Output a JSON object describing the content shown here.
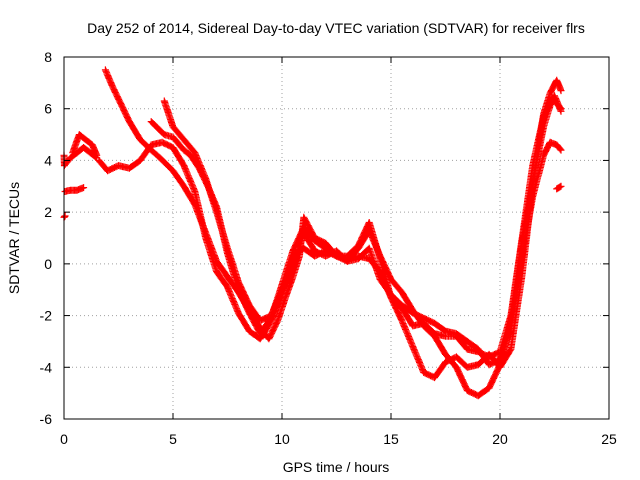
{
  "chart_data": {
    "type": "scatter",
    "title": "Day 252 of 2014, Sidereal Day-to-day VTEC variation (SDTVAR) for receiver flrs",
    "xlabel": "GPS time / hours",
    "ylabel": "SDTVAR / TECUs",
    "xlim": [
      0,
      25
    ],
    "ylim": [
      -6,
      8
    ],
    "x_ticks": [
      "0",
      "5",
      "10",
      "15",
      "20",
      "25"
    ],
    "y_ticks": [
      "-6",
      "-4",
      "-2",
      "0",
      "2",
      "4",
      "6",
      "8"
    ],
    "grid": true,
    "marker": "+",
    "color": "#ff0000",
    "series": [
      {
        "name": "s1",
        "x": [
          0.0,
          0.02,
          0.1,
          0.3,
          0.6,
          0.9,
          1.2,
          1.5
        ],
        "y": [
          4.2,
          3.8,
          3.9,
          4.1,
          4.3,
          4.5,
          4.3,
          4.1
        ]
      },
      {
        "name": "s2",
        "x": [
          0.05,
          0.3,
          0.6,
          0.9
        ],
        "y": [
          2.8,
          2.85,
          2.85,
          2.95
        ]
      },
      {
        "name": "s3",
        "x": [
          0.0,
          0.05
        ],
        "y": [
          1.8,
          1.85
        ]
      },
      {
        "name": "s4",
        "x": [
          0.4,
          0.7,
          1.0,
          1.3,
          1.5
        ],
        "y": [
          4.3,
          5.0,
          4.8,
          4.6,
          4.2
        ]
      },
      {
        "name": "s5",
        "x": [
          1.6,
          2.0,
          2.5,
          3.0,
          3.5,
          4.0,
          4.5,
          5.0,
          5.5,
          6.0,
          6.5,
          7.0,
          7.5,
          8.0,
          8.5,
          9.0,
          9.3,
          9.6,
          10.0,
          10.5,
          11.0,
          11.5,
          12.0,
          12.5,
          13.0,
          13.5,
          14.0,
          14.5,
          15.0,
          15.5,
          16.0,
          16.5,
          17.0,
          17.5,
          18.0,
          18.5,
          19.0,
          19.5,
          20.0,
          20.5,
          21.0,
          21.5,
          22.0,
          22.3,
          22.6,
          22.8
        ],
        "y": [
          4.0,
          3.6,
          3.8,
          3.7,
          4.0,
          4.6,
          4.7,
          4.5,
          3.8,
          2.8,
          1.0,
          -0.3,
          -0.9,
          -1.9,
          -2.6,
          -2.9,
          -2.5,
          -2.0,
          -1.2,
          0.3,
          0.6,
          0.3,
          0.5,
          0.3,
          0.1,
          0.2,
          0.6,
          -0.6,
          -1.2,
          -1.6,
          -1.9,
          -2.1,
          -2.3,
          -2.6,
          -2.7,
          -3.0,
          -3.3,
          -3.9,
          -3.7,
          -2.5,
          0.2,
          2.6,
          4.2,
          4.7,
          4.6,
          4.4
        ]
      },
      {
        "name": "s6",
        "x": [
          1.9,
          2.2,
          2.6,
          3.0,
          3.5,
          4.0,
          4.4,
          5.0,
          5.5,
          6.0,
          6.5,
          7.0,
          7.5,
          8.0,
          8.5,
          9.0,
          9.4,
          9.8,
          10.2,
          10.5,
          10.8,
          11.0,
          11.5,
          12.0,
          12.5,
          13.0,
          13.5,
          14.0,
          14.5,
          15.0,
          15.5,
          16.0,
          16.5,
          17.0,
          17.5,
          18.0,
          18.5,
          19.0,
          19.5,
          20.0,
          20.5,
          21.0,
          21.5,
          22.0,
          22.3,
          22.6,
          22.8
        ],
        "y": [
          7.5,
          6.9,
          6.2,
          5.5,
          4.8,
          4.4,
          4.1,
          3.6,
          3.0,
          2.3,
          1.2,
          0.1,
          -0.5,
          -1.1,
          -1.8,
          -2.5,
          -2.9,
          -2.2,
          -1.2,
          -0.5,
          0.3,
          1.8,
          1.0,
          0.8,
          0.3,
          0.2,
          0.3,
          0.2,
          -0.3,
          -1.3,
          -2.2,
          -3.2,
          -4.2,
          -4.4,
          -3.8,
          -3.6,
          -4.0,
          -3.9,
          -3.5,
          -4.0,
          -3.3,
          -0.5,
          3.0,
          5.8,
          6.6,
          7.1,
          6.7
        ]
      },
      {
        "name": "s7",
        "x": [
          4.6,
          5.0,
          5.5,
          6.0,
          6.5,
          7.0,
          7.5,
          8.0,
          8.5,
          9.0,
          9.5,
          10.0,
          10.5,
          11.0,
          11.5,
          12.0,
          12.5,
          13.0,
          13.5,
          14.0,
          14.5,
          15.0,
          15.5,
          16.0,
          16.5,
          17.0,
          17.5,
          18.0,
          18.5,
          19.0,
          19.5,
          20.0,
          20.5,
          21.0,
          21.5,
          22.0,
          22.4,
          22.8
        ],
        "y": [
          6.3,
          5.3,
          4.8,
          4.3,
          3.3,
          2.0,
          0.6,
          -0.7,
          -1.6,
          -2.2,
          -2.0,
          -1.0,
          -0.2,
          1.2,
          0.5,
          0.3,
          0.5,
          0.1,
          0.6,
          1.3,
          0.3,
          -0.6,
          -1.1,
          -1.8,
          -2.4,
          -2.8,
          -3.5,
          -4.0,
          -4.9,
          -5.1,
          -4.8,
          -3.9,
          -2.2,
          0.8,
          3.2,
          5.3,
          6.4,
          6.0
        ]
      },
      {
        "name": "s8",
        "x": [
          4.0,
          4.6,
          5.0,
          5.5,
          5.8,
          6.2,
          6.6,
          7.0,
          7.5,
          8.0,
          8.5,
          9.0,
          9.5,
          10.0,
          10.5,
          11.0,
          11.5,
          12.0,
          12.5,
          13.0,
          13.5,
          14.0,
          14.5,
          15.0,
          15.5,
          16.0,
          16.5,
          17.0,
          17.5,
          18.0,
          18.5,
          19.0,
          19.5,
          20.0,
          20.5,
          21.0,
          21.5,
          22.0,
          22.5,
          22.8
        ],
        "y": [
          5.5,
          5.0,
          4.9,
          4.4,
          4.2,
          3.7,
          3.0,
          2.2,
          0.4,
          -1.0,
          -1.9,
          -2.7,
          -2.1,
          -0.8,
          0.5,
          1.4,
          0.9,
          0.6,
          0.3,
          0.3,
          0.7,
          1.6,
          0.2,
          -1.3,
          -1.7,
          -2.4,
          -2.3,
          -2.7,
          -2.8,
          -2.8,
          -3.3,
          -3.4,
          -3.6,
          -3.4,
          -2.0,
          0.9,
          3.8,
          5.7,
          6.5,
          5.9
        ]
      },
      {
        "name": "s9",
        "x": [
          22.6,
          22.8
        ],
        "y": [
          2.9,
          3.0
        ]
      }
    ]
  }
}
